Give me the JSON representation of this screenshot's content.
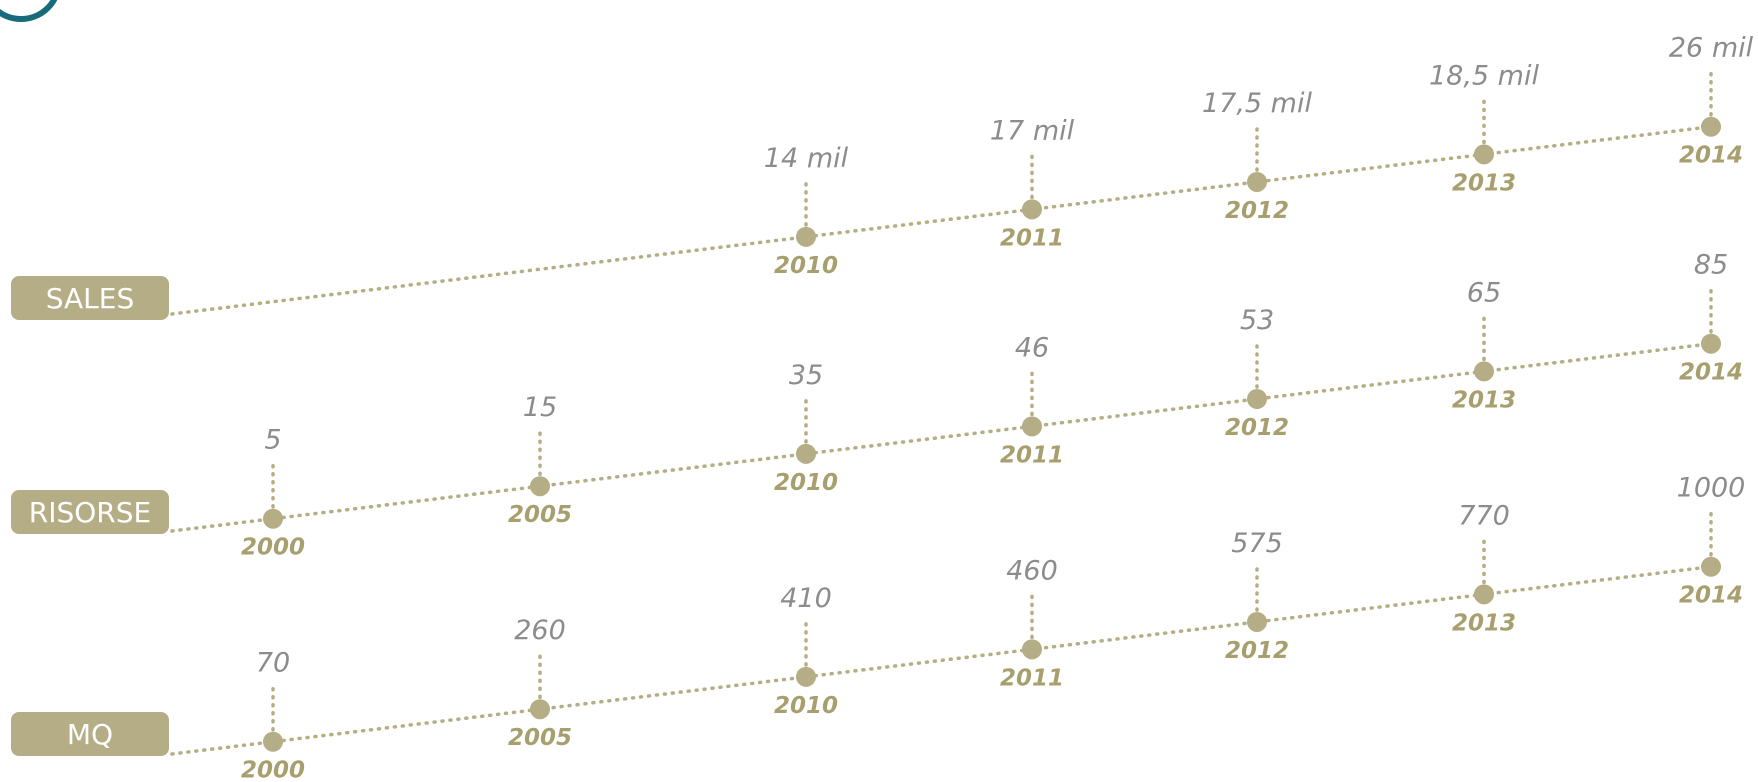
{
  "colors": {
    "accent": "#b5ad85",
    "value_text": "#8c8c8c",
    "year_text": "#a89f6e",
    "label_text": "#ffffff",
    "corner_mark": "#1a6b7a"
  },
  "chart_data": [
    {
      "type": "line",
      "label": "SALES",
      "x": [
        "2010",
        "2011",
        "2012",
        "2013",
        "2014"
      ],
      "value_labels": [
        "14 mil",
        "17 mil",
        "17,5 mil",
        "18,5 mil",
        "26 mil"
      ],
      "values": [
        14,
        17,
        17.5,
        18.5,
        26
      ]
    },
    {
      "type": "line",
      "label": "RISORSE",
      "x": [
        "2000",
        "2005",
        "2010",
        "2011",
        "2012",
        "2013",
        "2014"
      ],
      "value_labels": [
        "5",
        "15",
        "35",
        "46",
        "53",
        "65",
        "85"
      ],
      "values": [
        5,
        15,
        35,
        46,
        53,
        65,
        85
      ]
    },
    {
      "type": "line",
      "label": "MQ",
      "x": [
        "2000",
        "2005",
        "2010",
        "2011",
        "2012",
        "2013",
        "2014"
      ],
      "value_labels": [
        "70",
        "260",
        "410",
        "460",
        "575",
        "770",
        "1000"
      ],
      "values": [
        70,
        260,
        410,
        460,
        575,
        770,
        1000
      ]
    }
  ]
}
